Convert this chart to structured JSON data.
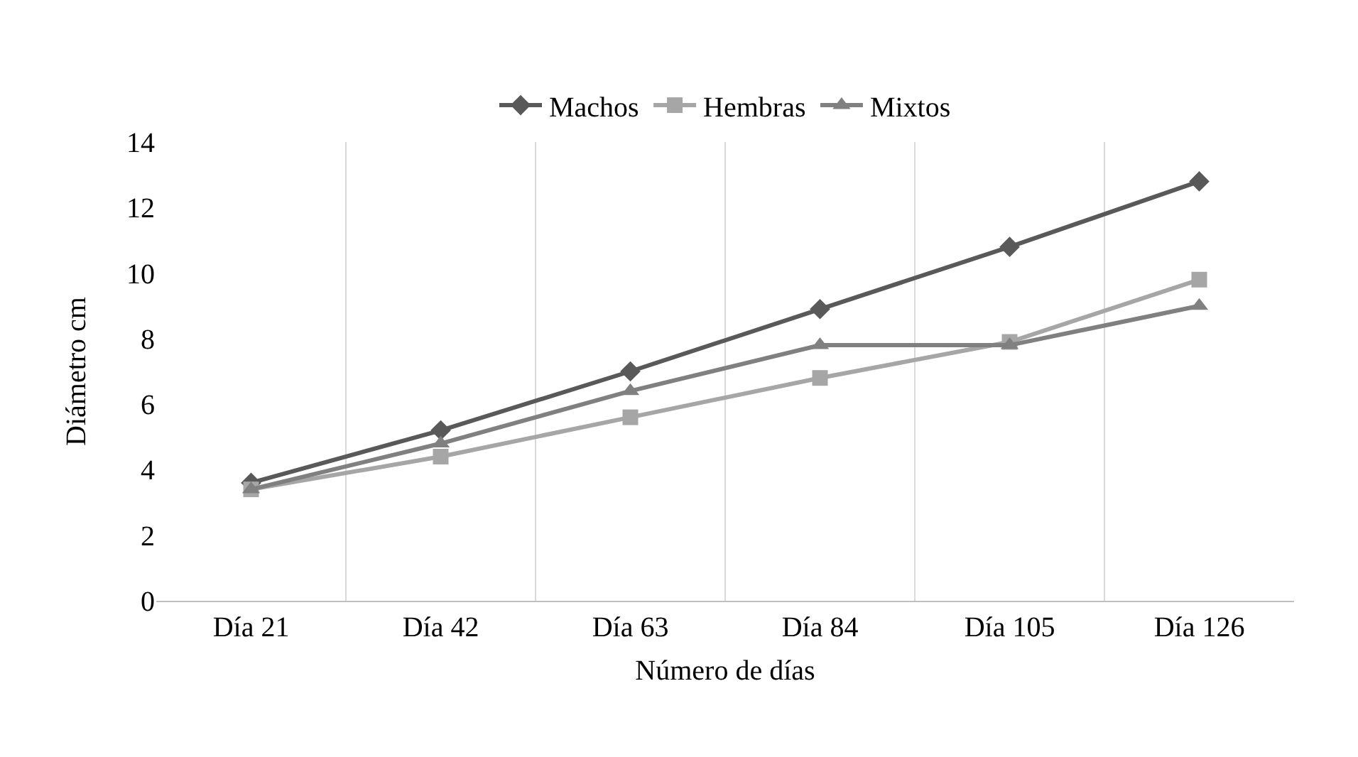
{
  "chart_data": {
    "type": "line",
    "xlabel": "Número de días",
    "ylabel": "Diámetro cm",
    "categories": [
      "Día 21",
      "Día 42",
      "Día 63",
      "Día 84",
      "Día 105",
      "Día 126"
    ],
    "series": [
      {
        "name": "Machos",
        "color": "#595959",
        "marker": "diamond",
        "values": [
          3.6,
          5.2,
          7.0,
          8.9,
          10.8,
          12.8
        ]
      },
      {
        "name": "Hembras",
        "color": "#a6a6a6",
        "marker": "square",
        "values": [
          3.4,
          4.4,
          5.6,
          6.8,
          7.9,
          9.8
        ]
      },
      {
        "name": "Mixtos",
        "color": "#808080",
        "marker": "triangle",
        "values": [
          3.4,
          4.8,
          6.4,
          7.8,
          7.8,
          9.0
        ]
      }
    ],
    "ylim": [
      0,
      14
    ],
    "yticks": [
      0,
      2,
      4,
      6,
      8,
      10,
      12,
      14
    ],
    "grid": "x",
    "legend": "top",
    "line_style": "solid"
  }
}
